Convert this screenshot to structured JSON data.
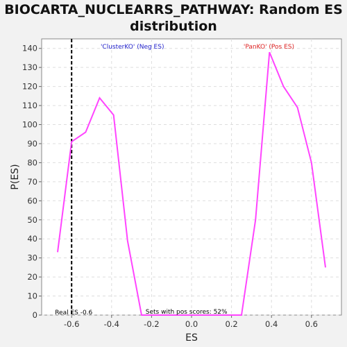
{
  "chart_data": {
    "type": "line",
    "title": "BIOCARTA_NUCLEARRS_PATHWAY: Random ES distribution",
    "xlabel": "ES",
    "ylabel": "P(ES)",
    "xlim": [
      -0.75,
      0.75
    ],
    "ylim": [
      0,
      145
    ],
    "xticks": [
      -0.6,
      -0.4,
      -0.2,
      0.0,
      0.2,
      0.4,
      0.6
    ],
    "xtick_labels": [
      "-0.6",
      "-0.4",
      "-0.2",
      "0.0",
      "0.2",
      "0.4",
      "0.6"
    ],
    "yticks": [
      0,
      10,
      20,
      30,
      40,
      50,
      60,
      70,
      80,
      90,
      100,
      110,
      120,
      130,
      140
    ],
    "grid": true,
    "series": [
      {
        "color": "#ff44ff",
        "x": [
          -0.67,
          -0.6,
          -0.53,
          -0.46,
          -0.39,
          -0.32,
          -0.25,
          -0.18,
          -0.11,
          -0.04,
          0.04,
          0.11,
          0.18,
          0.25,
          0.32,
          0.39,
          0.46,
          0.53,
          0.6,
          0.67
        ],
        "y": [
          33,
          91,
          96,
          114,
          105,
          39,
          0,
          0,
          0,
          0,
          0,
          0,
          0,
          0,
          50,
          138,
          120,
          109,
          80,
          25
        ]
      }
    ],
    "real_es": {
      "x": -0.6,
      "label": "Real ES -0.6"
    },
    "legend": {
      "neg": {
        "text": "'ClusterKO' (Neg ES)",
        "color": "#2222cc"
      },
      "pos": {
        "text": "'PanKO' (Pos ES)",
        "color": "#dd2222"
      }
    },
    "annotation": "Sets with pos scores: 52%"
  }
}
